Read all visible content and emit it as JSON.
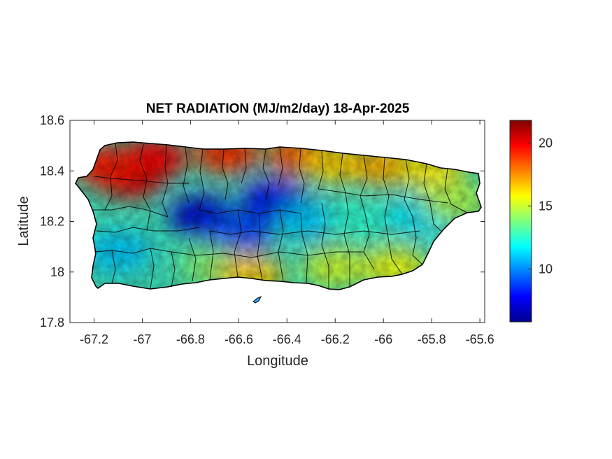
{
  "chart_data": {
    "type": "heatmap",
    "title": "NET RADIATION (MJ/m2/day) 18-Apr-2025",
    "xlabel": "Longitude",
    "ylabel": "Latitude",
    "xlim": [
      -67.3,
      -65.58
    ],
    "ylim": [
      17.8,
      18.6
    ],
    "x_ticks": [
      -67.2,
      -67,
      -66.8,
      -66.6,
      -66.4,
      -66.2,
      -66,
      -65.8,
      -65.6
    ],
    "x_tick_labels": [
      "-67.2",
      "-67",
      "-66.8",
      "-66.6",
      "-66.4",
      "-66.2",
      "-66",
      "-65.8",
      "-65.6"
    ],
    "y_ticks": [
      17.8,
      18,
      18.2,
      18.4,
      18.6
    ],
    "y_tick_labels": [
      "17.8",
      "18",
      "18.2",
      "18.4",
      "18.6"
    ],
    "colormap": "jet",
    "colorbar": {
      "range": [
        5.8,
        21.8
      ],
      "ticks": [
        10,
        15,
        20
      ],
      "tick_labels": [
        "10",
        "15",
        "20"
      ],
      "placement": "right"
    },
    "grid": false,
    "region": "Puerto Rico (municipality boundaries)",
    "field_patches": [
      {
        "lon": -67.05,
        "lat": 18.37,
        "value": 20.5
      },
      {
        "lon": -66.95,
        "lat": 18.45,
        "value": 20.0
      },
      {
        "lon": -67.15,
        "lat": 18.42,
        "value": 19.5
      },
      {
        "lon": -66.65,
        "lat": 18.47,
        "value": 19.0
      },
      {
        "lon": -66.35,
        "lat": 18.46,
        "value": 18.5
      },
      {
        "lon": -66.2,
        "lat": 18.43,
        "value": 16.5
      },
      {
        "lon": -66.0,
        "lat": 18.42,
        "value": 17.0
      },
      {
        "lon": -65.8,
        "lat": 18.4,
        "value": 16.0
      },
      {
        "lon": -66.75,
        "lat": 18.22,
        "value": 7.0
      },
      {
        "lon": -66.45,
        "lat": 18.28,
        "value": 7.5
      },
      {
        "lon": -66.6,
        "lat": 18.15,
        "value": 9.0
      },
      {
        "lon": -66.3,
        "lat": 18.2,
        "value": 11.0
      },
      {
        "lon": -66.1,
        "lat": 18.2,
        "value": 12.5
      },
      {
        "lon": -65.85,
        "lat": 18.22,
        "value": 11.5
      },
      {
        "lon": -67.1,
        "lat": 18.08,
        "value": 11.0
      },
      {
        "lon": -66.7,
        "lat": 18.02,
        "value": 14.0
      },
      {
        "lon": -66.55,
        "lat": 17.99,
        "value": 16.5
      },
      {
        "lon": -66.2,
        "lat": 18.02,
        "value": 15.0
      },
      {
        "lon": -65.95,
        "lat": 18.02,
        "value": 15.5
      },
      {
        "lon": -65.7,
        "lat": 18.28,
        "value": 14.5
      }
    ]
  }
}
